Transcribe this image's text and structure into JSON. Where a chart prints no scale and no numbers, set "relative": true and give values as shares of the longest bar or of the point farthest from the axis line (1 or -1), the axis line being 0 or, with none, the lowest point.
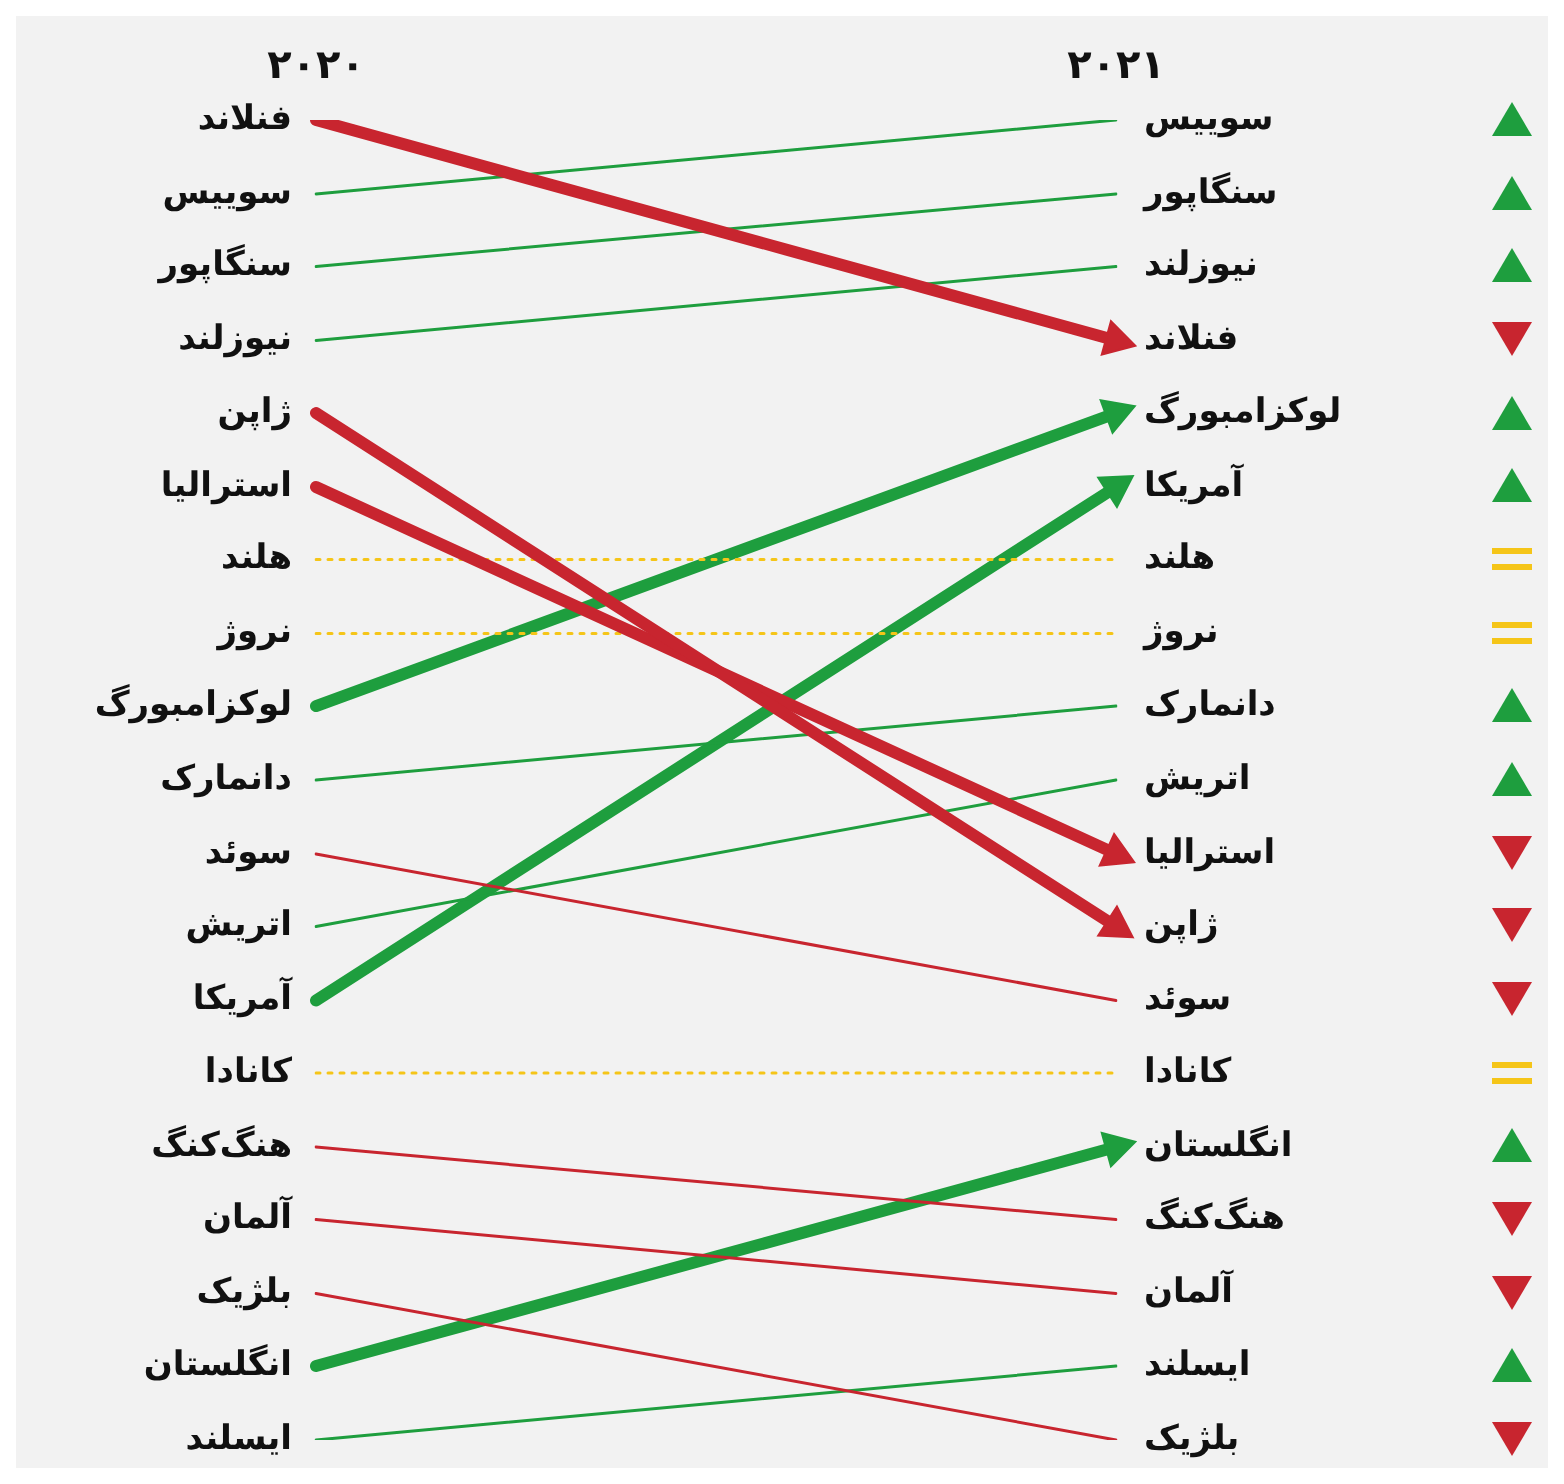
{
  "chart_data": {
    "type": "line",
    "categories": [
      "۲۰۲۰",
      "۲۰۲۱"
    ],
    "relative": true,
    "series": [
      {
        "name": "فنلاند",
        "color": "#c8252f",
        "values": [
          1,
          0.833
        ],
        "marker": "triangle"
      },
      {
        "name": "سوییس",
        "color": "#1e9e3e",
        "values": [
          0.944,
          1
        ]
      },
      {
        "name": "سنگاپور",
        "color": "#1e9e3e",
        "values": [
          0.889,
          0.944
        ]
      },
      {
        "name": "نیوزلند",
        "color": "#1e9e3e",
        "values": [
          0.833,
          0.889
        ]
      },
      {
        "name": "ژاپن",
        "color": "#c8252f",
        "values": [
          0.778,
          0.389
        ],
        "marker": "triangle"
      },
      {
        "name": "استرالیا",
        "color": "#c8252f",
        "values": [
          0.722,
          0.444
        ],
        "marker": "triangle"
      },
      {
        "name": "هلند",
        "color": "#f5c518",
        "values": [
          0.667,
          0.667
        ],
        "line_style": "dotted"
      },
      {
        "name": "نروژ",
        "color": "#f5c518",
        "values": [
          0.611,
          0.611
        ],
        "line_style": "dotted"
      },
      {
        "name": "لوکزامبورگ",
        "color": "#1e9e3e",
        "values": [
          0.556,
          0.778
        ],
        "marker": "triangle"
      },
      {
        "name": "دانمارک",
        "color": "#1e9e3e",
        "values": [
          0.5,
          0.556
        ]
      },
      {
        "name": "سوئد",
        "color": "#c8252f",
        "values": [
          0.444,
          0.333
        ]
      },
      {
        "name": "اتریش",
        "color": "#1e9e3e",
        "values": [
          0.389,
          0.5
        ]
      },
      {
        "name": "آمریکا",
        "color": "#1e9e3e",
        "values": [
          0.333,
          0.722
        ],
        "marker": "triangle"
      },
      {
        "name": "کانادا",
        "color": "#f5c518",
        "values": [
          0.278,
          0.278
        ],
        "line_style": "dotted"
      },
      {
        "name": "هنگ‌کنگ",
        "color": "#c8252f",
        "values": [
          0.222,
          0.167
        ]
      },
      {
        "name": "آلمان",
        "color": "#c8252f",
        "values": [
          0.167,
          0.111
        ]
      },
      {
        "name": "بلژیک",
        "color": "#c8252f",
        "values": [
          0.111,
          0
        ]
      },
      {
        "name": "انگلستان",
        "color": "#1e9e3e",
        "values": [
          0.056,
          0.222
        ],
        "marker": "triangle"
      },
      {
        "name": "ایسلند",
        "color": "#1e9e3e",
        "values": [
          0,
          0.056
        ]
      }
    ],
    "grid": false,
    "legend": false
  }
}
